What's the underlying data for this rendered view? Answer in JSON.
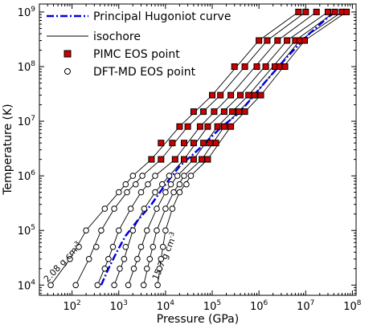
{
  "chart_data": {
    "type": "scatter",
    "xlabel": "Pressure (GPa)",
    "ylabel": "Temperature (K)",
    "x_scale": "log",
    "y_scale": "log",
    "xlim": [
      20,
      120000000
    ],
    "ylim": [
      6500,
      1400000000
    ],
    "x_ticks": [
      {
        "value": 100,
        "base": "10",
        "exp": "2"
      },
      {
        "value": 1000,
        "base": "10",
        "exp": "3"
      },
      {
        "value": 10000,
        "base": "10",
        "exp": "4"
      },
      {
        "value": 100000,
        "base": "10",
        "exp": "5"
      },
      {
        "value": 1000000,
        "base": "10",
        "exp": "6"
      },
      {
        "value": 10000000,
        "base": "10",
        "exp": "7"
      },
      {
        "value": 100000000,
        "base": "10",
        "exp": "8"
      }
    ],
    "y_ticks": [
      {
        "value": 10000,
        "base": "10",
        "exp": "4"
      },
      {
        "value": 100000,
        "base": "10",
        "exp": "5"
      },
      {
        "value": 1000000,
        "base": "10",
        "exp": "6"
      },
      {
        "value": 10000000,
        "base": "10",
        "exp": "7"
      },
      {
        "value": 100000000,
        "base": "10",
        "exp": "8"
      },
      {
        "value": 1000000000,
        "base": "10",
        "exp": "9"
      }
    ],
    "legend": {
      "position": "top-left",
      "entries": [
        {
          "label": "Principal Hugoniot curve",
          "marker": "dashdot-line",
          "color": "#0000dd"
        },
        {
          "label": "isochore",
          "marker": "line",
          "color": "#000000"
        },
        {
          "label": "PIMC EOS point",
          "marker": "square",
          "color": "#cc0000"
        },
        {
          "label": "DFT-MD EOS point",
          "marker": "circle",
          "color": "#000000"
        }
      ]
    },
    "annotations": [
      {
        "text": "2.08 g cm",
        "sup": "-3",
        "x": 30,
        "y": 11000
      },
      {
        "text": "15.7 g cm",
        "sup": "-3",
        "x": 6800,
        "y": 12000
      }
    ],
    "hugoniot": {
      "name": "Principal Hugoniot curve",
      "color": "#0000dd",
      "points": [
        [
          420,
          10000
        ],
        [
          600,
          20000
        ],
        [
          900,
          40000
        ],
        [
          1400,
          80000
        ],
        [
          2500,
          150000
        ],
        [
          5000,
          300000
        ],
        [
          10000,
          700000
        ],
        [
          20000,
          1500000
        ],
        [
          50000,
          3000000
        ],
        [
          150000,
          7500000
        ],
        [
          400000,
          15000000
        ],
        [
          1300000,
          50000000
        ],
        [
          4000000,
          150000000
        ],
        [
          12000000,
          400000000
        ],
        [
          30000000,
          800000000
        ],
        [
          50000000,
          1100000000
        ]
      ]
    },
    "isochores": [
      {
        "points": [
          [
            35,
            10000
          ],
          [
            90,
            30000
          ],
          [
            200,
            100000
          ],
          [
            500,
            250000
          ],
          [
            1000,
            500000
          ],
          [
            2000,
            1000000
          ],
          [
            5000,
            2000000
          ],
          [
            20000,
            8000000
          ],
          [
            100000,
            30000000
          ],
          [
            1000000,
            300000000
          ],
          [
            7000000,
            1000000000
          ]
        ]
      },
      {
        "points": [
          [
            120,
            10000
          ],
          [
            230,
            30000
          ],
          [
            420,
            100000
          ],
          [
            800,
            250000
          ],
          [
            1500,
            500000
          ],
          [
            3200,
            1000000
          ],
          [
            8000,
            2000000
          ],
          [
            30000,
            8000000
          ],
          [
            150000,
            30000000
          ],
          [
            1500000,
            300000000
          ],
          [
            10000000,
            1000000000
          ]
        ]
      },
      {
        "points": [
          [
            350,
            10000
          ],
          [
            600,
            30000
          ],
          [
            1000,
            100000
          ],
          [
            1800,
            250000
          ],
          [
            3000,
            500000
          ],
          [
            6000,
            1000000
          ],
          [
            16000,
            2000000
          ],
          [
            55000,
            8000000
          ],
          [
            250000,
            30000000
          ],
          [
            2500000,
            300000000
          ],
          [
            17000000,
            1000000000
          ]
        ]
      },
      {
        "points": [
          [
            800,
            10000
          ],
          [
            1300,
            30000
          ],
          [
            2000,
            100000
          ],
          [
            3500,
            250000
          ],
          [
            6000,
            500000
          ],
          [
            12000,
            1000000
          ],
          [
            25000,
            2000000
          ],
          [
            80000,
            8000000
          ],
          [
            400000,
            30000000
          ],
          [
            4000000,
            300000000
          ],
          [
            30000000,
            1000000000
          ]
        ]
      },
      {
        "points": [
          [
            1600,
            10000
          ],
          [
            2500,
            30000
          ],
          [
            4000,
            100000
          ],
          [
            6500,
            250000
          ],
          [
            10000,
            500000
          ],
          [
            18000,
            1000000
          ],
          [
            40000,
            2000000
          ],
          [
            130000,
            8000000
          ],
          [
            600000,
            30000000
          ],
          [
            6000000,
            300000000
          ],
          [
            42000000,
            1000000000
          ]
        ]
      },
      {
        "points": [
          [
            3400,
            10000
          ],
          [
            4600,
            30000
          ],
          [
            6500,
            100000
          ],
          [
            10000,
            250000
          ],
          [
            15000,
            500000
          ],
          [
            25000,
            1000000
          ],
          [
            60000,
            2000000
          ],
          [
            180000,
            8000000
          ],
          [
            800000,
            30000000
          ],
          [
            7500000,
            300000000
          ],
          [
            60000000,
            1000000000
          ]
        ]
      },
      {
        "points": [
          [
            6800,
            10000
          ],
          [
            8000,
            30000
          ],
          [
            10000,
            100000
          ],
          [
            14000,
            250000
          ],
          [
            20000,
            500000
          ],
          [
            35000,
            1000000
          ],
          [
            80000,
            2000000
          ],
          [
            250000,
            8000000
          ],
          [
            1100000,
            30000000
          ],
          [
            9500000,
            300000000
          ],
          [
            75000000,
            1000000000
          ]
        ]
      }
    ],
    "pimc_points": [
      [
        7000000,
        1000000000
      ],
      [
        10000000,
        1000000000
      ],
      [
        17000000,
        1000000000
      ],
      [
        30000000,
        1000000000
      ],
      [
        42000000,
        1000000000
      ],
      [
        60000000,
        1000000000
      ],
      [
        75000000,
        1000000000
      ],
      [
        1000000,
        300000000
      ],
      [
        1500000,
        300000000
      ],
      [
        2500000,
        300000000
      ],
      [
        4000000,
        300000000
      ],
      [
        6000000,
        300000000
      ],
      [
        7500000,
        300000000
      ],
      [
        9500000,
        300000000
      ],
      [
        300000,
        100000000
      ],
      [
        500000,
        100000000
      ],
      [
        900000,
        100000000
      ],
      [
        1400000,
        100000000
      ],
      [
        2200000,
        100000000
      ],
      [
        2800000,
        100000000
      ],
      [
        3600000,
        100000000
      ],
      [
        100000,
        30000000
      ],
      [
        150000,
        30000000
      ],
      [
        250000,
        30000000
      ],
      [
        400000,
        30000000
      ],
      [
        600000,
        30000000
      ],
      [
        800000,
        30000000
      ],
      [
        1100000,
        30000000
      ],
      [
        40000,
        15000000
      ],
      [
        65000,
        15000000
      ],
      [
        110000,
        15000000
      ],
      [
        180000,
        15000000
      ],
      [
        270000,
        15000000
      ],
      [
        370000,
        15000000
      ],
      [
        500000,
        15000000
      ],
      [
        20000,
        8000000
      ],
      [
        30000,
        8000000
      ],
      [
        55000,
        8000000
      ],
      [
        80000,
        8000000
      ],
      [
        130000,
        8000000
      ],
      [
        180000,
        8000000
      ],
      [
        250000,
        8000000
      ],
      [
        8000,
        4000000
      ],
      [
        14000,
        4000000
      ],
      [
        25000,
        4000000
      ],
      [
        40000,
        4000000
      ],
      [
        65000,
        4000000
      ],
      [
        90000,
        4000000
      ],
      [
        120000,
        4000000
      ],
      [
        5000,
        2000000
      ],
      [
        8000,
        2000000
      ],
      [
        16000,
        2000000
      ],
      [
        25000,
        2000000
      ],
      [
        40000,
        2000000
      ],
      [
        60000,
        2000000
      ],
      [
        80000,
        2000000
      ]
    ],
    "dft_points": [
      [
        2000,
        1000000
      ],
      [
        3200,
        1000000
      ],
      [
        6000,
        1000000
      ],
      [
        12000,
        1000000
      ],
      [
        18000,
        1000000
      ],
      [
        25000,
        1000000
      ],
      [
        35000,
        1000000
      ],
      [
        1400,
        700000
      ],
      [
        2300,
        700000
      ],
      [
        4200,
        700000
      ],
      [
        8500,
        700000
      ],
      [
        13000,
        700000
      ],
      [
        20000,
        700000
      ],
      [
        28000,
        700000
      ],
      [
        1000,
        500000
      ],
      [
        1500,
        500000
      ],
      [
        3000,
        500000
      ],
      [
        6000,
        500000
      ],
      [
        10000,
        500000
      ],
      [
        15000,
        500000
      ],
      [
        20000,
        500000
      ],
      [
        500,
        250000
      ],
      [
        800,
        250000
      ],
      [
        1800,
        250000
      ],
      [
        3500,
        250000
      ],
      [
        6500,
        250000
      ],
      [
        10000,
        250000
      ],
      [
        14000,
        250000
      ],
      [
        200,
        100000
      ],
      [
        420,
        100000
      ],
      [
        1000,
        100000
      ],
      [
        2000,
        100000
      ],
      [
        4000,
        100000
      ],
      [
        6500,
        100000
      ],
      [
        10000,
        100000
      ],
      [
        140,
        50000
      ],
      [
        330,
        50000
      ],
      [
        750,
        50000
      ],
      [
        1400,
        50000
      ],
      [
        3000,
        50000
      ],
      [
        5400,
        50000
      ],
      [
        8800,
        50000
      ],
      [
        90,
        30000
      ],
      [
        230,
        30000
      ],
      [
        600,
        30000
      ],
      [
        1300,
        30000
      ],
      [
        2500,
        30000
      ],
      [
        4600,
        30000
      ],
      [
        8000,
        30000
      ],
      [
        500,
        20000
      ],
      [
        1050,
        20000
      ],
      [
        2100,
        20000
      ],
      [
        4000,
        20000
      ],
      [
        7400,
        20000
      ],
      [
        35,
        10000
      ],
      [
        120,
        10000
      ],
      [
        350,
        10000
      ],
      [
        800,
        10000
      ],
      [
        1600,
        10000
      ],
      [
        3400,
        10000
      ],
      [
        6800,
        10000
      ]
    ]
  }
}
